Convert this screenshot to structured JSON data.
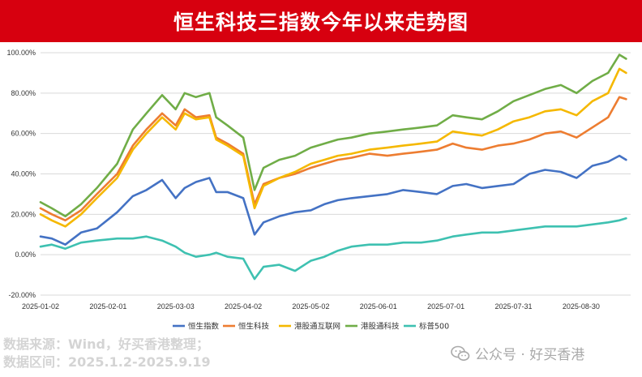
{
  "header": {
    "title": "恒生科技三指数今年以来走势图"
  },
  "footer": {
    "source_line1": "数据来源：Wind，好买香港整理；",
    "source_line2": "数据区间：2025.1.2-2025.9.19",
    "watermark": "公众号 · 好买香港"
  },
  "colors": {
    "title_bg": "#d7000f",
    "grid": "#d9d9d9"
  },
  "icons": {
    "watermark": "wechat-icon"
  },
  "chart_data": {
    "type": "line",
    "title": "恒生科技三指数今年以来走势图",
    "ylim": [
      -20,
      100
    ],
    "y_ticks": [
      "-20.00%",
      "0.00%",
      "20.00%",
      "40.00%",
      "60.00%",
      "80.00%",
      "100.00%"
    ],
    "x_ticks": [
      "2025-01-02",
      "2025-02-01",
      "2025-03-03",
      "2025-04-02",
      "2025-05-02",
      "2025-06-01",
      "2025-07-01",
      "2025-07-31",
      "2025-08-30"
    ],
    "grid": "horizontal",
    "legend_position": "bottom",
    "series": [
      {
        "name": "恒生指数",
        "color": "#4472c4",
        "x": [
          "2025-01-02",
          "2025-01-07",
          "2025-01-13",
          "2025-01-20",
          "2025-01-27",
          "2025-02-05",
          "2025-02-12",
          "2025-02-18",
          "2025-02-25",
          "2025-03-03",
          "2025-03-07",
          "2025-03-12",
          "2025-03-18",
          "2025-03-21",
          "2025-03-26",
          "2025-04-02",
          "2025-04-07",
          "2025-04-11",
          "2025-04-18",
          "2025-04-25",
          "2025-05-02",
          "2025-05-08",
          "2025-05-14",
          "2025-05-20",
          "2025-05-28",
          "2025-06-05",
          "2025-06-12",
          "2025-06-20",
          "2025-06-27",
          "2025-07-04",
          "2025-07-10",
          "2025-07-17",
          "2025-07-24",
          "2025-07-31",
          "2025-08-07",
          "2025-08-14",
          "2025-08-21",
          "2025-08-28",
          "2025-09-04",
          "2025-09-11",
          "2025-09-16",
          "2025-09-19"
        ],
        "values": [
          9,
          8,
          5,
          11,
          13,
          21,
          29,
          32,
          37,
          28,
          33,
          36,
          38,
          31,
          31,
          28,
          10,
          16,
          19,
          21,
          22,
          25,
          27,
          28,
          29,
          30,
          32,
          31,
          30,
          34,
          35,
          33,
          34,
          35,
          40,
          42,
          41,
          38,
          44,
          46,
          49,
          47
        ]
      },
      {
        "name": "恒生科技",
        "color": "#ed7d31",
        "x": [
          "2025-01-02",
          "2025-01-07",
          "2025-01-13",
          "2025-01-20",
          "2025-01-27",
          "2025-02-05",
          "2025-02-12",
          "2025-02-18",
          "2025-02-25",
          "2025-03-03",
          "2025-03-07",
          "2025-03-12",
          "2025-03-18",
          "2025-03-21",
          "2025-03-26",
          "2025-04-02",
          "2025-04-07",
          "2025-04-11",
          "2025-04-18",
          "2025-04-25",
          "2025-05-02",
          "2025-05-08",
          "2025-05-14",
          "2025-05-20",
          "2025-05-28",
          "2025-06-05",
          "2025-06-12",
          "2025-06-20",
          "2025-06-27",
          "2025-07-04",
          "2025-07-10",
          "2025-07-17",
          "2025-07-24",
          "2025-07-31",
          "2025-08-07",
          "2025-08-14",
          "2025-08-21",
          "2025-08-28",
          "2025-09-04",
          "2025-09-11",
          "2025-09-16",
          "2025-09-19"
        ],
        "values": [
          23,
          20,
          17,
          22,
          30,
          40,
          54,
          62,
          70,
          64,
          72,
          68,
          69,
          58,
          55,
          50,
          25,
          35,
          38,
          40,
          43,
          45,
          47,
          48,
          50,
          49,
          50,
          51,
          52,
          55,
          53,
          52,
          54,
          55,
          57,
          60,
          61,
          58,
          63,
          68,
          78,
          77
        ]
      },
      {
        "name": "港股通互联网",
        "color": "#f5b800",
        "x": [
          "2025-01-02",
          "2025-01-07",
          "2025-01-13",
          "2025-01-20",
          "2025-01-27",
          "2025-02-05",
          "2025-02-12",
          "2025-02-18",
          "2025-02-25",
          "2025-03-03",
          "2025-03-07",
          "2025-03-12",
          "2025-03-18",
          "2025-03-21",
          "2025-03-26",
          "2025-04-02",
          "2025-04-07",
          "2025-04-11",
          "2025-04-18",
          "2025-04-25",
          "2025-05-02",
          "2025-05-08",
          "2025-05-14",
          "2025-05-20",
          "2025-05-28",
          "2025-06-05",
          "2025-06-12",
          "2025-06-20",
          "2025-06-27",
          "2025-07-04",
          "2025-07-10",
          "2025-07-17",
          "2025-07-24",
          "2025-07-31",
          "2025-08-07",
          "2025-08-14",
          "2025-08-21",
          "2025-08-28",
          "2025-09-04",
          "2025-09-11",
          "2025-09-16",
          "2025-09-19"
        ],
        "values": [
          20,
          17,
          14,
          20,
          28,
          38,
          52,
          60,
          68,
          62,
          70,
          67,
          68,
          57,
          54,
          49,
          23,
          34,
          38,
          41,
          45,
          47,
          49,
          50,
          52,
          53,
          54,
          55,
          56,
          61,
          60,
          59,
          62,
          66,
          68,
          71,
          72,
          69,
          76,
          80,
          92,
          90
        ]
      },
      {
        "name": "港股通科技",
        "color": "#70ad47",
        "x": [
          "2025-01-02",
          "2025-01-07",
          "2025-01-13",
          "2025-01-20",
          "2025-01-27",
          "2025-02-05",
          "2025-02-12",
          "2025-02-18",
          "2025-02-25",
          "2025-03-03",
          "2025-03-07",
          "2025-03-12",
          "2025-03-18",
          "2025-03-21",
          "2025-03-26",
          "2025-04-02",
          "2025-04-07",
          "2025-04-11",
          "2025-04-18",
          "2025-04-25",
          "2025-05-02",
          "2025-05-08",
          "2025-05-14",
          "2025-05-20",
          "2025-05-28",
          "2025-06-05",
          "2025-06-12",
          "2025-06-20",
          "2025-06-27",
          "2025-07-04",
          "2025-07-10",
          "2025-07-17",
          "2025-07-24",
          "2025-07-31",
          "2025-08-07",
          "2025-08-14",
          "2025-08-21",
          "2025-08-28",
          "2025-09-04",
          "2025-09-11",
          "2025-09-16",
          "2025-09-19"
        ],
        "values": [
          26,
          23,
          19,
          25,
          33,
          45,
          62,
          70,
          79,
          72,
          80,
          78,
          80,
          68,
          64,
          58,
          32,
          43,
          47,
          49,
          53,
          55,
          57,
          58,
          60,
          61,
          62,
          63,
          64,
          69,
          68,
          67,
          71,
          76,
          79,
          82,
          84,
          80,
          86,
          90,
          99,
          97
        ]
      },
      {
        "name": "标普500",
        "color": "#3ec1b1",
        "x": [
          "2025-01-02",
          "2025-01-07",
          "2025-01-13",
          "2025-01-20",
          "2025-01-27",
          "2025-02-05",
          "2025-02-12",
          "2025-02-18",
          "2025-02-25",
          "2025-03-03",
          "2025-03-07",
          "2025-03-12",
          "2025-03-18",
          "2025-03-21",
          "2025-03-26",
          "2025-04-02",
          "2025-04-07",
          "2025-04-11",
          "2025-04-18",
          "2025-04-25",
          "2025-05-02",
          "2025-05-08",
          "2025-05-14",
          "2025-05-20",
          "2025-05-28",
          "2025-06-05",
          "2025-06-12",
          "2025-06-20",
          "2025-06-27",
          "2025-07-04",
          "2025-07-10",
          "2025-07-17",
          "2025-07-24",
          "2025-07-31",
          "2025-08-07",
          "2025-08-14",
          "2025-08-21",
          "2025-08-28",
          "2025-09-04",
          "2025-09-11",
          "2025-09-16",
          "2025-09-19"
        ],
        "values": [
          4,
          5,
          3,
          6,
          7,
          8,
          8,
          9,
          7,
          4,
          1,
          -1,
          0,
          1,
          -1,
          -2,
          -12,
          -6,
          -5,
          -8,
          -3,
          -1,
          2,
          4,
          5,
          5,
          6,
          6,
          7,
          9,
          10,
          11,
          11,
          12,
          13,
          14,
          14,
          14,
          15,
          16,
          17,
          18
        ]
      }
    ]
  }
}
